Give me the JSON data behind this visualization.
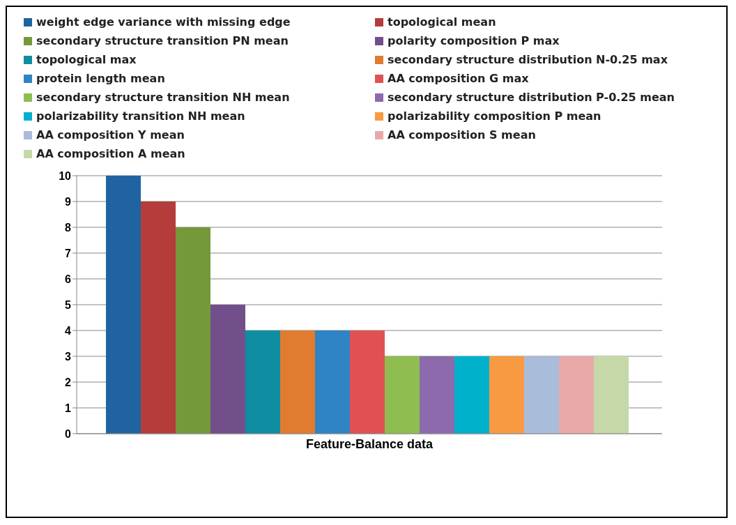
{
  "chart_data": {
    "type": "bar",
    "categories": [
      "Feature-Balance data"
    ],
    "series": [
      {
        "name": "weight edge variance with missing edge",
        "color": "#1f64a0",
        "values": [
          10
        ]
      },
      {
        "name": "topological mean",
        "color": "#b43c3a",
        "values": [
          9
        ]
      },
      {
        "name": "secondary structure transition PN mean",
        "color": "#74993a",
        "values": [
          8
        ]
      },
      {
        "name": "polarity composition P max",
        "color": "#724f8a",
        "values": [
          5
        ]
      },
      {
        "name": "topological max",
        "color": "#0e8ea0",
        "values": [
          4
        ]
      },
      {
        "name": "secondary structure distribution N-0.25 max",
        "color": "#e17b30",
        "values": [
          4
        ]
      },
      {
        "name": "protein length mean",
        "color": "#2e84c4",
        "values": [
          4
        ]
      },
      {
        "name": "AA composition G max",
        "color": "#e05252",
        "values": [
          4
        ]
      },
      {
        "name": "secondary structure transition NH mean",
        "color": "#8fbd50",
        "values": [
          3
        ]
      },
      {
        "name": "secondary structure distribution P-0.25 mean",
        "color": "#8d6aab",
        "values": [
          3
        ]
      },
      {
        "name": "polarizability transition NH mean",
        "color": "#00b1cc",
        "values": [
          3
        ]
      },
      {
        "name": "polarizability composition P mean",
        "color": "#f89a42",
        "values": [
          3
        ]
      },
      {
        "name": "AA composition Y mean",
        "color": "#a9bcd9",
        "values": [
          3
        ]
      },
      {
        "name": "AA composition S mean",
        "color": "#e9a9a8",
        "values": [
          3
        ]
      },
      {
        "name": "AA composition A mean",
        "color": "#c4d8a8",
        "values": [
          3
        ]
      }
    ],
    "ylim": [
      0,
      10
    ],
    "yticks": [
      0,
      1,
      2,
      3,
      4,
      5,
      6,
      7,
      8,
      9,
      10
    ],
    "grid": "y",
    "legend": "top"
  }
}
